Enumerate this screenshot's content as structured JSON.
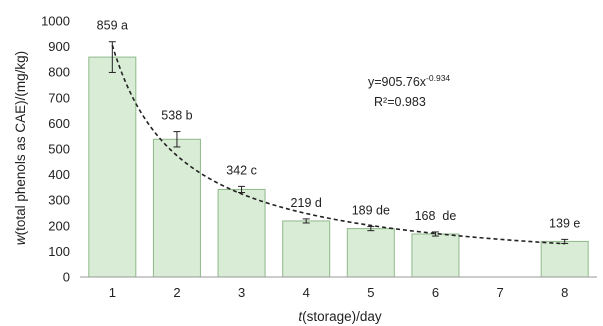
{
  "chart_data": {
    "type": "bar",
    "categories": [
      "1",
      "2",
      "3",
      "4",
      "5",
      "6",
      "7",
      "8"
    ],
    "values": [
      859,
      538,
      342,
      219,
      189,
      168,
      null,
      139
    ],
    "error": [
      60,
      30,
      12,
      8,
      8,
      8,
      null,
      8
    ],
    "data_labels": [
      "859 a",
      "538 b",
      "342 c",
      "219 d",
      "189 de",
      "168  de",
      "",
      "139 e"
    ],
    "xlabel_prefix": "t",
    "xlabel_rest": "(storage)/day",
    "ylabel_prefix": "w",
    "ylabel_rest": "(total phenols as CAE)/(mg/kg)",
    "ylim": [
      0,
      1000
    ],
    "yticks": [
      "0",
      "100",
      "200",
      "300",
      "400",
      "500",
      "600",
      "700",
      "800",
      "900",
      "1000"
    ],
    "trendline": {
      "type": "power",
      "a": 905.76,
      "b": -0.934,
      "equation_base": "y=905.76x",
      "equation_exp": "-0.934",
      "r2_label": "R²=0.983"
    },
    "grid": false,
    "legend": "none",
    "colors": {
      "bar_fill": "#d9ecd5",
      "bar_stroke": "#8fb98a",
      "trend": "#222222",
      "axis": "#999999"
    }
  }
}
